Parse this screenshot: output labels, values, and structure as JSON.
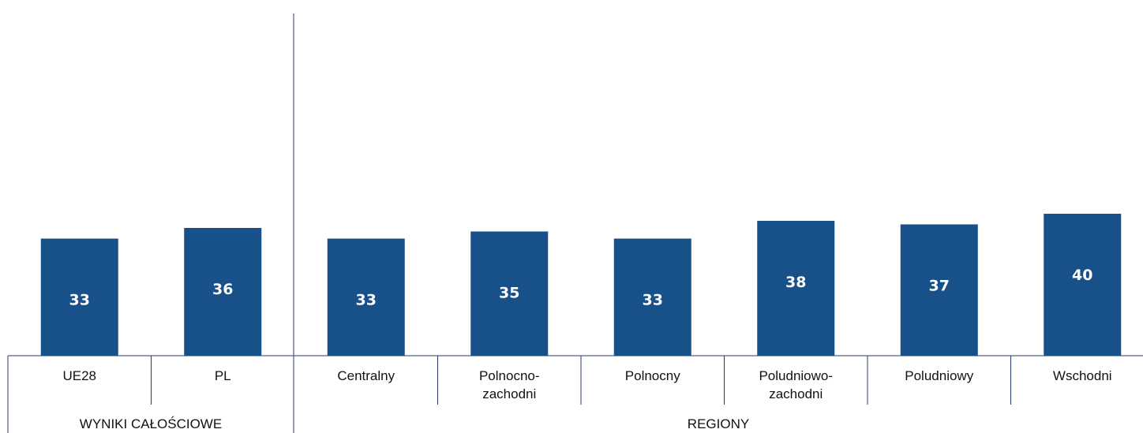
{
  "chart_data": {
    "type": "bar",
    "categories": [
      "UE28",
      "PL",
      "Centralny",
      "Polnocno-zachodni",
      "Polnocny",
      "Poludniowo-zachodni",
      "Poludniowy",
      "Wschodni"
    ],
    "category_lines": [
      [
        "UE28"
      ],
      [
        "PL"
      ],
      [
        "Centralny"
      ],
      [
        "Polnocno-",
        "zachodni"
      ],
      [
        "Polnocny"
      ],
      [
        "Poludniowo-",
        "zachodni"
      ],
      [
        "Poludniowy"
      ],
      [
        "Wschodni"
      ]
    ],
    "values": [
      33,
      36,
      33,
      35,
      33,
      38,
      37,
      40
    ],
    "groups": [
      {
        "label": "WYNIKI CAŁOŚCIOWE",
        "categories": [
          "UE28",
          "PL"
        ]
      },
      {
        "label": "REGIONY",
        "categories": [
          "Centralny",
          "Polnocno-zachodni",
          "Polnocny",
          "Poludniowo-zachodni",
          "Poludniowy",
          "Wschodni"
        ]
      }
    ],
    "ylim": [
      0,
      100
    ],
    "grid": false,
    "bar_color": "#18508a",
    "axis_color": "#2e3a6e"
  }
}
